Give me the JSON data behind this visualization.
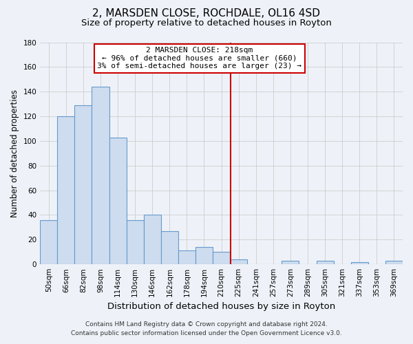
{
  "title": "2, MARSDEN CLOSE, ROCHDALE, OL16 4SD",
  "subtitle": "Size of property relative to detached houses in Royton",
  "xlabel": "Distribution of detached houses by size in Royton",
  "ylabel": "Number of detached properties",
  "bar_labels": [
    "50sqm",
    "66sqm",
    "82sqm",
    "98sqm",
    "114sqm",
    "130sqm",
    "146sqm",
    "162sqm",
    "178sqm",
    "194sqm",
    "210sqm",
    "225sqm",
    "241sqm",
    "257sqm",
    "273sqm",
    "289sqm",
    "305sqm",
    "321sqm",
    "337sqm",
    "353sqm",
    "369sqm"
  ],
  "bar_values": [
    36,
    120,
    129,
    144,
    103,
    36,
    40,
    27,
    11,
    14,
    10,
    4,
    0,
    0,
    3,
    0,
    3,
    0,
    2,
    0,
    3
  ],
  "bar_color": "#cddcee",
  "bar_edge_color": "#6699cc",
  "grid_color": "#cccccc",
  "vline_x": 10.55,
  "vline_color": "#cc0000",
  "annotation_title": "2 MARSDEN CLOSE: 218sqm",
  "annotation_line1": "← 96% of detached houses are smaller (660)",
  "annotation_line2": "3% of semi-detached houses are larger (23) →",
  "annotation_box_color": "white",
  "annotation_box_edge": "#cc0000",
  "footer_line1": "Contains HM Land Registry data © Crown copyright and database right 2024.",
  "footer_line2": "Contains public sector information licensed under the Open Government Licence v3.0.",
  "ylim": [
    0,
    180
  ],
  "yticks": [
    0,
    20,
    40,
    60,
    80,
    100,
    120,
    140,
    160,
    180
  ],
  "bg_color": "#eef2f8",
  "title_fontsize": 11,
  "subtitle_fontsize": 9.5,
  "xlabel_fontsize": 9.5,
  "ylabel_fontsize": 8.5,
  "tick_fontsize": 7.5,
  "annotation_fontsize": 8,
  "footer_fontsize": 6.5
}
